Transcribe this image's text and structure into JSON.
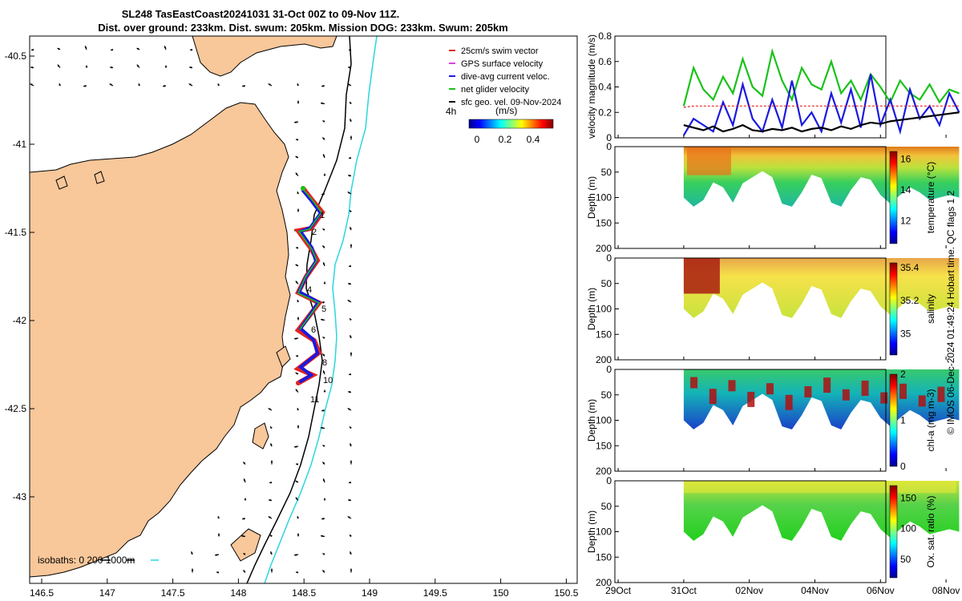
{
  "header": {
    "line1": "SL248 TasEastCoast20241031 31-Oct 00Z to 09-Nov 11Z.",
    "line2": "Dist. over ground: 233km. Dist. swum: 205km. Mission DOG: 233km. Swum: 205km"
  },
  "side_note": "© IMOS 06-Dec-2024 01:49:24 Hobart time. QC flags 1  2",
  "colors": {
    "land": "#f8c79a",
    "coast_iso": "#000000",
    "iso200": "#000000",
    "iso1000": "#2bd6e0",
    "track": "#e52222",
    "dac": "#1a1adf",
    "net": "#19c219",
    "geo_vel": "#000000"
  },
  "map": {
    "x_ticks": [
      "146.5",
      "147",
      "147.5",
      "148",
      "148.5",
      "149",
      "149.5",
      "150",
      "150.5"
    ],
    "y_ticks": [
      "-40.5",
      "-41",
      "-41.5",
      "-42",
      "-42.5",
      "-43"
    ],
    "legend": [
      {
        "label": "25cm/s swim vector",
        "icon": "swim-vector-icon"
      },
      {
        "label": "GPS surface velocity",
        "icon": "gps-velocity-icon"
      },
      {
        "label": "dive-avg current veloc.",
        "icon": "dac-icon"
      },
      {
        "label": "net glider velocity",
        "icon": "net-velocity-icon"
      },
      {
        "label": "sfc geo. vel. 09-Nov-2024",
        "icon": "geo-vel-icon"
      }
    ],
    "arrow_scale_label": "4h",
    "colorbar": {
      "title": "(m/s)",
      "ticks": [
        "0",
        "0.2",
        "0.4"
      ]
    },
    "isobaths_label": "isobaths: 0   200   1000m",
    "waypoints": [
      "1",
      "2",
      "4",
      "5",
      "6",
      "8",
      "10",
      "11"
    ]
  },
  "chart_data": [
    {
      "type": "line",
      "title": "velocity magnitude",
      "ylabel": "velocity magnitude (m/s)",
      "ylim": [
        0,
        0.8
      ],
      "y_ticks": [
        "0",
        "0.2",
        "0.4",
        "0.6",
        "0.8"
      ],
      "x": [
        31.0,
        31.3,
        31.6,
        31.9,
        32.2,
        32.5,
        32.8,
        33.1,
        33.4,
        33.7,
        34.0,
        34.3,
        34.6,
        34.9,
        35.2,
        35.5,
        35.8,
        36.1,
        36.4,
        36.7,
        37.0,
        37.3,
        37.6,
        37.9,
        38.2,
        38.5,
        38.8,
        39.1,
        39.4
      ],
      "series": [
        {
          "name": "net glider velocity",
          "color": "#19c219",
          "values": [
            0.25,
            0.55,
            0.38,
            0.3,
            0.48,
            0.35,
            0.62,
            0.4,
            0.33,
            0.68,
            0.45,
            0.3,
            0.55,
            0.42,
            0.38,
            0.6,
            0.35,
            0.45,
            0.3,
            0.5,
            0.4,
            0.28,
            0.45,
            0.35,
            0.3,
            0.42,
            0.28,
            0.38,
            0.35
          ]
        },
        {
          "name": "dive-avg current",
          "color": "#1a1adf",
          "values": [
            0.02,
            0.15,
            0.1,
            0.05,
            0.28,
            0.1,
            0.42,
            0.15,
            0.05,
            0.3,
            0.08,
            0.45,
            0.1,
            0.2,
            0.05,
            0.35,
            0.12,
            0.38,
            0.08,
            0.5,
            0.1,
            0.3,
            0.05,
            0.38,
            0.15,
            0.25,
            0.1,
            0.35,
            0.2
          ]
        },
        {
          "name": "swim vector",
          "color": "#e52222",
          "values": [
            0.24,
            0.25,
            0.25,
            0.25,
            0.25,
            0.25,
            0.25,
            0.25,
            0.25,
            0.25,
            0.25,
            0.25,
            0.25,
            0.25,
            0.25,
            0.25,
            0.25,
            0.25,
            0.25,
            0.25,
            0.25,
            0.25,
            0.25,
            0.25,
            0.25,
            0.25,
            0.25,
            0.25,
            0.25
          ]
        },
        {
          "name": "sfc geo. vel.",
          "color": "#000000",
          "values": [
            0.1,
            0.08,
            0.06,
            0.09,
            0.05,
            0.07,
            0.1,
            0.06,
            0.05,
            0.07,
            0.06,
            0.08,
            0.05,
            0.07,
            0.08,
            0.06,
            0.09,
            0.07,
            0.1,
            0.12,
            0.11,
            0.13,
            0.14,
            0.15,
            0.16,
            0.17,
            0.18,
            0.19,
            0.2
          ]
        }
      ]
    },
    {
      "type": "heatmap",
      "title": "temperature",
      "ylabel": "Depth (m)",
      "clabel": "temperature (°C)",
      "ylim": [
        200,
        0
      ],
      "y_ticks": [
        "0",
        "50",
        "100",
        "150",
        "200"
      ],
      "cbar_ticks": [
        "12",
        "14",
        "16"
      ],
      "clim": [
        10.5,
        16.5
      ]
    },
    {
      "type": "heatmap",
      "title": "salinity",
      "ylabel": "Depth (m)",
      "clabel": "salinity",
      "ylim": [
        200,
        0
      ],
      "y_ticks": [
        "0",
        "50",
        "100",
        "150",
        "200"
      ],
      "cbar_ticks": [
        "35",
        "35.2",
        "35.4"
      ],
      "clim": [
        34.87,
        35.43
      ]
    },
    {
      "type": "heatmap",
      "title": "chl-a",
      "ylabel": "Depth (m)",
      "clabel": "chl-a (mg m-3)",
      "ylim": [
        200,
        0
      ],
      "y_ticks": [
        "0",
        "50",
        "100",
        "150",
        "200"
      ],
      "cbar_ticks": [
        "0",
        "1",
        "2"
      ],
      "clim": [
        0,
        2
      ]
    },
    {
      "type": "heatmap",
      "title": "oxygen saturation",
      "ylabel": "Depth (m)",
      "clabel": "Ox. sat. ratio (%)",
      "ylim": [
        200,
        0
      ],
      "y_ticks": [
        "0",
        "50",
        "100",
        "150",
        "200"
      ],
      "cbar_ticks": [
        "50",
        "100",
        "150"
      ],
      "clim": [
        20,
        170
      ]
    }
  ],
  "time_axis": {
    "ticks": [
      "29Oct",
      "31Oct",
      "02Nov",
      "04Nov",
      "06Nov",
      "08Nov"
    ]
  },
  "dive_profile": {
    "x": [
      31.0,
      31.3,
      31.6,
      31.9,
      32.2,
      32.5,
      32.8,
      33.1,
      33.4,
      33.7,
      34.0,
      34.3,
      34.6,
      34.9,
      35.2,
      35.5,
      35.8,
      36.1,
      36.4,
      36.7,
      37.0,
      37.3,
      37.6,
      37.9,
      38.2,
      38.5,
      38.8,
      39.1,
      39.4
    ],
    "max_depth": [
      100,
      118,
      105,
      70,
      80,
      110,
      72,
      60,
      48,
      60,
      112,
      118,
      90,
      55,
      62,
      110,
      118,
      85,
      60,
      65,
      95,
      112,
      95,
      80,
      90,
      105,
      100,
      95,
      100
    ]
  }
}
